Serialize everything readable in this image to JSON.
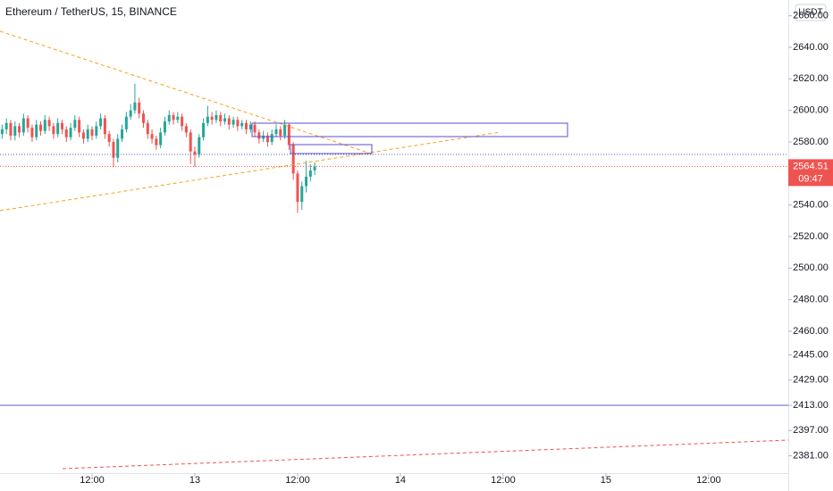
{
  "chart_data": {
    "type": "candlestick",
    "title": "Ethereum / TetherUS, 15, BINANCE",
    "currency": "USDT",
    "countdown": "09:47",
    "up_color": "#26a69a",
    "down_color": "#ef5350",
    "xlim": [
      1.25,
      93.3
    ],
    "xticks": [
      {
        "value": 12,
        "label": "12:00"
      },
      {
        "value": 24,
        "label": "13"
      },
      {
        "value": 36,
        "label": "12:00"
      },
      {
        "value": 48,
        "label": "14"
      },
      {
        "value": 60,
        "label": "12:00"
      },
      {
        "value": 72,
        "label": "15"
      },
      {
        "value": 84,
        "label": "12:00"
      }
    ],
    "ylim": [
      2370,
      2670
    ],
    "yticks": [
      {
        "value": 2660,
        "label": "2660.00"
      },
      {
        "value": 2640,
        "label": "2640.00"
      },
      {
        "value": 2620,
        "label": "2620.00"
      },
      {
        "value": 2600,
        "label": "2600.00"
      },
      {
        "value": 2580,
        "label": "2580.00"
      },
      {
        "value": 2540,
        "label": "2540.00"
      },
      {
        "value": 2520,
        "label": "2520.00"
      },
      {
        "value": 2500,
        "label": "2500.00"
      },
      {
        "value": 2480,
        "label": "2480.00"
      },
      {
        "value": 2460,
        "label": "2460.00"
      },
      {
        "value": 2445,
        "label": "2445.00"
      },
      {
        "value": 2429,
        "label": "2429.00"
      },
      {
        "value": 2413,
        "label": "2413.00"
      },
      {
        "value": 2397,
        "label": "2397.00"
      },
      {
        "value": 2381,
        "label": "2381.00"
      }
    ],
    "x": [
      1.5,
      2,
      2.5,
      3,
      3.5,
      4,
      4.5,
      5,
      5.5,
      6,
      6.5,
      7,
      7.5,
      8,
      8.5,
      9,
      9.5,
      10,
      10.5,
      11,
      11.5,
      12,
      12.5,
      13,
      13.5,
      14,
      14.5,
      15,
      15.5,
      16,
      16.5,
      17,
      17.5,
      18,
      18.5,
      19,
      19.5,
      20,
      20.5,
      21,
      21.5,
      22,
      22.5,
      23,
      23.5,
      24,
      24.5,
      25,
      25.5,
      26,
      26.5,
      27,
      27.5,
      28,
      28.5,
      29,
      29.5,
      30,
      30.5,
      31,
      31.5,
      32,
      32.5,
      33,
      33.5,
      34,
      34.5,
      35,
      35.5,
      36,
      36.5,
      37,
      37.5,
      38
    ],
    "open": [
      2585,
      2588,
      2592,
      2584,
      2590,
      2586,
      2595,
      2589,
      2583,
      2591,
      2587,
      2594,
      2590,
      2585,
      2592,
      2588,
      2583,
      2589,
      2594,
      2586,
      2582,
      2588,
      2584,
      2590,
      2595,
      2585,
      2580,
      2570,
      2582,
      2588,
      2596,
      2600,
      2605,
      2598,
      2592,
      2585,
      2582,
      2578,
      2586,
      2593,
      2597,
      2594,
      2596,
      2590,
      2586,
      2574,
      2572,
      2583,
      2592,
      2596,
      2594,
      2597,
      2593,
      2595,
      2591,
      2594,
      2590,
      2592,
      2588,
      2591,
      2586,
      2582,
      2584,
      2580,
      2585,
      2588,
      2584,
      2591,
      2578,
      2560,
      2542,
      2552,
      2558,
      2562
    ],
    "high": [
      2591,
      2595,
      2594,
      2593,
      2592,
      2598,
      2597,
      2591,
      2594,
      2593,
      2597,
      2596,
      2592,
      2595,
      2594,
      2590,
      2592,
      2597,
      2596,
      2588,
      2591,
      2590,
      2593,
      2598,
      2597,
      2587,
      2582,
      2585,
      2591,
      2599,
      2604,
      2617,
      2608,
      2600,
      2594,
      2588,
      2584,
      2589,
      2596,
      2600,
      2599,
      2599,
      2598,
      2592,
      2588,
      2577,
      2585,
      2595,
      2603,
      2599,
      2600,
      2599,
      2598,
      2597,
      2596,
      2596,
      2594,
      2594,
      2593,
      2593,
      2588,
      2587,
      2586,
      2588,
      2591,
      2590,
      2594,
      2592,
      2580,
      2562,
      2555,
      2568,
      2566,
      2567
    ],
    "low": [
      2582,
      2585,
      2581,
      2581,
      2583,
      2584,
      2586,
      2580,
      2581,
      2584,
      2585,
      2587,
      2582,
      2583,
      2585,
      2580,
      2581,
      2587,
      2583,
      2579,
      2580,
      2581,
      2582,
      2588,
      2582,
      2577,
      2564,
      2567,
      2580,
      2586,
      2594,
      2598,
      2595,
      2589,
      2582,
      2579,
      2575,
      2576,
      2584,
      2591,
      2591,
      2592,
      2587,
      2583,
      2566,
      2564,
      2570,
      2581,
      2590,
      2591,
      2592,
      2590,
      2591,
      2588,
      2589,
      2587,
      2588,
      2585,
      2586,
      2583,
      2579,
      2580,
      2577,
      2578,
      2583,
      2581,
      2582,
      2575,
      2556,
      2535,
      2537,
      2548,
      2555,
      2559
    ],
    "close": [
      2588,
      2592,
      2584,
      2590,
      2586,
      2595,
      2589,
      2583,
      2591,
      2587,
      2594,
      2590,
      2585,
      2592,
      2588,
      2583,
      2589,
      2594,
      2586,
      2582,
      2588,
      2584,
      2590,
      2595,
      2585,
      2580,
      2570,
      2582,
      2588,
      2596,
      2600,
      2605,
      2598,
      2592,
      2585,
      2582,
      2578,
      2586,
      2593,
      2597,
      2594,
      2596,
      2590,
      2586,
      2574,
      2572,
      2583,
      2592,
      2596,
      2594,
      2597,
      2593,
      2595,
      2591,
      2594,
      2590,
      2592,
      2588,
      2591,
      2586,
      2582,
      2584,
      2580,
      2585,
      2588,
      2584,
      2591,
      2578,
      2560,
      2542,
      2552,
      2558,
      2562,
      2564.51
    ]
  }
}
